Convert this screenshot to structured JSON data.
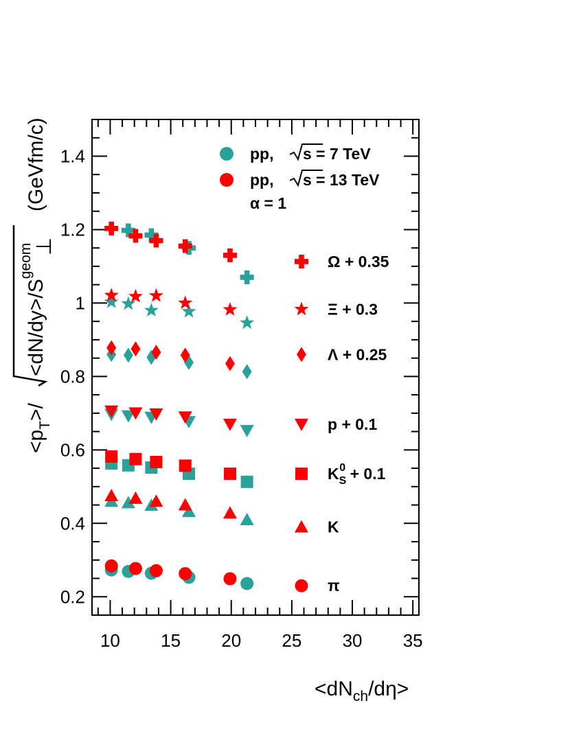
{
  "chart_data": {
    "type": "scatter",
    "xlabel": "<dN_ch/dη>",
    "ylabel": "<p_T>/√(<dN/dy>/S_⊥^geom) (GeVfm/c)",
    "xlim": [
      8.5,
      35.5
    ],
    "ylim": [
      0.15,
      1.5
    ],
    "x_ticks": [
      10,
      15,
      20,
      25,
      30,
      35
    ],
    "y_ticks": [
      0.2,
      0.4,
      0.6,
      0.8,
      1,
      1.2,
      1.4
    ],
    "x_tick_labels": [
      "10",
      "15",
      "20",
      "25",
      "30",
      "35"
    ],
    "y_tick_labels": [
      "0.2",
      "0.4",
      "0.6",
      "0.8",
      "1",
      "1.2",
      "1.4"
    ],
    "grid": false,
    "legend": {
      "placement": "top-right",
      "entries": [
        {
          "prefix": "pp,",
          "energy": "s = 7 TeV",
          "color": "#2aa19b"
        },
        {
          "prefix": "pp,",
          "energy": "s = 13 TeV",
          "color": "#ff0000"
        }
      ],
      "alpha_label": "α = 1"
    },
    "colors": {
      "pp7": "#2aa19b",
      "pp13": "#ff0000"
    },
    "series": [
      {
        "species": "Ω",
        "label": "Ω + 0.35",
        "marker": "cross",
        "pp7": {
          "x": [
            11.5,
            13.4,
            16.5,
            21.3
          ],
          "y": [
            1.198,
            1.185,
            1.15,
            1.07
          ]
        },
        "pp13": {
          "x": [
            10.1,
            12.1,
            13.8,
            16.2,
            19.9
          ],
          "y": [
            1.203,
            1.183,
            1.17,
            1.155,
            1.13
          ]
        }
      },
      {
        "species": "Ξ",
        "label": "Ξ + 0.3",
        "marker": "star",
        "pp7": {
          "x": [
            10.1,
            11.5,
            13.4,
            16.5,
            21.3
          ],
          "y": [
            1.003,
            0.998,
            0.98,
            0.977,
            0.946
          ]
        },
        "pp13": {
          "x": [
            10.1,
            12.1,
            13.8,
            16.2,
            19.9
          ],
          "y": [
            1.021,
            1.018,
            1.02,
            1.0,
            0.982
          ]
        }
      },
      {
        "species": "Λ",
        "label": "Λ + 0.25",
        "marker": "diamond",
        "pp7": {
          "x": [
            10.1,
            11.5,
            13.4,
            16.5,
            21.3
          ],
          "y": [
            0.86,
            0.858,
            0.852,
            0.838,
            0.813
          ]
        },
        "pp13": {
          "x": [
            10.1,
            12.1,
            13.8,
            16.2,
            19.9
          ],
          "y": [
            0.878,
            0.875,
            0.866,
            0.858,
            0.835
          ]
        }
      },
      {
        "species": "p",
        "label": "p + 0.1",
        "marker": "triangle-down",
        "pp7": {
          "x": [
            10.1,
            11.5,
            13.4,
            16.5,
            21.3
          ],
          "y": [
            0.697,
            0.693,
            0.689,
            0.677,
            0.653
          ]
        },
        "pp13": {
          "x": [
            10.1,
            12.1,
            13.8,
            16.2,
            19.9
          ],
          "y": [
            0.706,
            0.701,
            0.698,
            0.69,
            0.67
          ]
        }
      },
      {
        "species": "K_S^0",
        "label": "K + 0.1",
        "label_super": "0",
        "label_sub": "S",
        "label_main": "K",
        "label_suffix": " + 0.1",
        "marker": "square",
        "pp7": {
          "x": [
            10.1,
            11.5,
            13.4,
            16.5,
            21.3
          ],
          "y": [
            0.563,
            0.558,
            0.552,
            0.535,
            0.513
          ]
        },
        "pp13": {
          "x": [
            10.1,
            12.1,
            13.8,
            16.2,
            19.9
          ],
          "y": [
            0.582,
            0.575,
            0.567,
            0.557,
            0.535
          ]
        }
      },
      {
        "species": "K",
        "label": "K",
        "marker": "triangle-up",
        "pp7": {
          "x": [
            10.1,
            11.5,
            13.4,
            16.5,
            21.3
          ],
          "y": [
            0.46,
            0.456,
            0.449,
            0.432,
            0.41
          ]
        },
        "pp13": {
          "x": [
            10.1,
            12.1,
            13.8,
            16.2,
            19.9
          ],
          "y": [
            0.475,
            0.468,
            0.46,
            0.45,
            0.428
          ]
        }
      },
      {
        "species": "π",
        "label": "π",
        "marker": "circle",
        "pp7": {
          "x": [
            10.1,
            11.5,
            13.4,
            16.5,
            21.3
          ],
          "y": [
            0.273,
            0.269,
            0.264,
            0.253,
            0.236
          ]
        },
        "pp13": {
          "x": [
            10.1,
            12.1,
            13.8,
            16.2,
            19.9
          ],
          "y": [
            0.284,
            0.277,
            0.271,
            0.263,
            0.249
          ]
        }
      }
    ],
    "species_labels_x": 25.8,
    "species_labels_y": [
      1.113,
      0.983,
      0.86,
      0.67,
      0.535,
      0.39,
      0.23
    ]
  }
}
